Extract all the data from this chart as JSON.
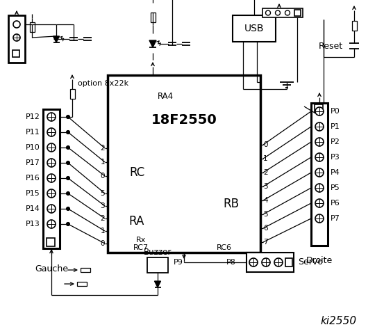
{
  "title": "ki2550",
  "bg_color": "#ffffff",
  "ic_label": "18F2550",
  "ic_sublabel": "RA4",
  "rc_label": "RC",
  "ra_label": "RA",
  "rb_label": "RB",
  "rc7_label": "RC7",
  "rc6_label": "RC6",
  "rx_label": "Rx",
  "left_connector_label": "Gauche",
  "right_connector_label": "Droite",
  "servo_label": "Servo",
  "buzzer_label": "Buzzer",
  "usb_label": "USB",
  "reset_label": "Reset",
  "option_label": "option 8x22k",
  "p9_label": "P9",
  "p8_label": "P8",
  "left_pins": [
    "P12",
    "P11",
    "P10",
    "P17",
    "P16",
    "P15",
    "P14",
    "P13"
  ],
  "right_pins": [
    "P0",
    "P1",
    "P2",
    "P3",
    "P4",
    "P5",
    "P6",
    "P7"
  ],
  "rc_pins": [
    "2",
    "1",
    "0"
  ],
  "ra_pins": [
    "5",
    "3",
    "2",
    "1",
    "0"
  ],
  "rb_pins": [
    "0",
    "1",
    "2",
    "3",
    "4",
    "5",
    "6",
    "7"
  ]
}
